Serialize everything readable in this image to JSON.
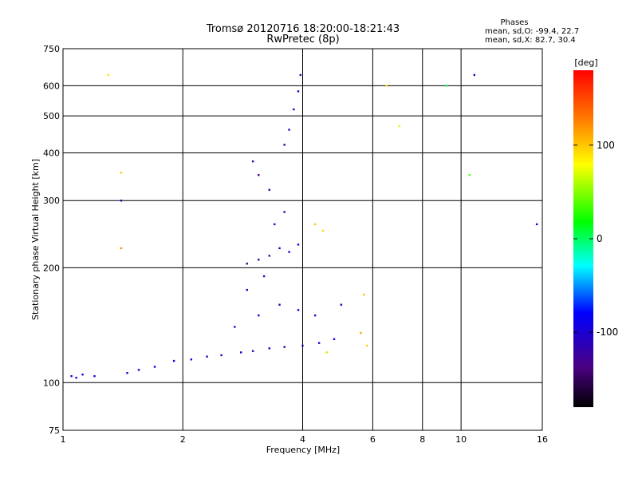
{
  "header": {
    "title_line1": "Tromsø 20120716 18:20:00-18:21:43",
    "title_line2": "RwPretec (8p)"
  },
  "stats": {
    "heading": "Phases",
    "o_mode": "mean, sd,O: -99.4, 22.7",
    "x_mode": "mean, sd,X:  82.7, 30.4"
  },
  "colorbar": {
    "label": "[deg]",
    "range": [
      -180,
      180
    ],
    "ticks": [
      "100",
      "0",
      "-100"
    ],
    "tick_values": [
      100,
      0,
      -100
    ]
  },
  "chart_data": {
    "type": "scatter",
    "xlabel": "Frequency [MHz]",
    "ylabel": "Stationary phase Virtual Height [km]",
    "xscale": "log",
    "yscale": "log",
    "xlim": [
      1,
      16
    ],
    "ylim": [
      75,
      750
    ],
    "xtick_labels": [
      "1",
      "2",
      "4",
      "6",
      "8",
      "10",
      "16"
    ],
    "xtick_values": [
      1,
      2,
      4,
      6,
      8,
      10,
      16
    ],
    "ytick_labels": [
      "75",
      "100",
      "200",
      "300",
      "400",
      "500",
      "600",
      "750"
    ],
    "ytick_values": [
      75,
      100,
      200,
      300,
      400,
      500,
      600,
      750
    ],
    "grid": true,
    "points": [
      {
        "x": 1.05,
        "y": 104,
        "phase": -95
      },
      {
        "x": 1.08,
        "y": 103,
        "phase": -100
      },
      {
        "x": 1.12,
        "y": 105,
        "phase": -98
      },
      {
        "x": 1.2,
        "y": 104,
        "phase": -92
      },
      {
        "x": 1.45,
        "y": 106,
        "phase": -105
      },
      {
        "x": 1.55,
        "y": 108,
        "phase": -95
      },
      {
        "x": 1.7,
        "y": 110,
        "phase": -90
      },
      {
        "x": 1.9,
        "y": 114,
        "phase": -100
      },
      {
        "x": 2.1,
        "y": 115,
        "phase": -95
      },
      {
        "x": 2.3,
        "y": 117,
        "phase": -110
      },
      {
        "x": 2.5,
        "y": 118,
        "phase": -100
      },
      {
        "x": 2.8,
        "y": 120,
        "phase": -105
      },
      {
        "x": 3.0,
        "y": 121,
        "phase": -120
      },
      {
        "x": 3.3,
        "y": 123,
        "phase": -100
      },
      {
        "x": 3.6,
        "y": 124,
        "phase": -95
      },
      {
        "x": 4.0,
        "y": 125,
        "phase": -110
      },
      {
        "x": 4.4,
        "y": 127,
        "phase": -100
      },
      {
        "x": 4.8,
        "y": 130,
        "phase": -90
      },
      {
        "x": 2.7,
        "y": 140,
        "phase": -100
      },
      {
        "x": 3.1,
        "y": 150,
        "phase": -95
      },
      {
        "x": 3.5,
        "y": 160,
        "phase": -110
      },
      {
        "x": 3.9,
        "y": 155,
        "phase": -90
      },
      {
        "x": 4.3,
        "y": 150,
        "phase": -100
      },
      {
        "x": 5.0,
        "y": 160,
        "phase": -95
      },
      {
        "x": 2.9,
        "y": 175,
        "phase": -100
      },
      {
        "x": 3.2,
        "y": 190,
        "phase": -120
      },
      {
        "x": 2.9,
        "y": 205,
        "phase": -125
      },
      {
        "x": 3.1,
        "y": 210,
        "phase": -120
      },
      {
        "x": 3.3,
        "y": 215,
        "phase": -130
      },
      {
        "x": 3.5,
        "y": 225,
        "phase": -110
      },
      {
        "x": 3.7,
        "y": 220,
        "phase": -100
      },
      {
        "x": 3.9,
        "y": 230,
        "phase": -95
      },
      {
        "x": 3.4,
        "y": 260,
        "phase": -110
      },
      {
        "x": 3.6,
        "y": 280,
        "phase": -100
      },
      {
        "x": 3.3,
        "y": 320,
        "phase": -120
      },
      {
        "x": 3.1,
        "y": 350,
        "phase": -130
      },
      {
        "x": 3.0,
        "y": 380,
        "phase": -120
      },
      {
        "x": 3.6,
        "y": 420,
        "phase": -100
      },
      {
        "x": 3.7,
        "y": 460,
        "phase": -110
      },
      {
        "x": 3.8,
        "y": 520,
        "phase": -100
      },
      {
        "x": 3.9,
        "y": 580,
        "phase": -110
      },
      {
        "x": 3.95,
        "y": 640,
        "phase": -120
      },
      {
        "x": 4.3,
        "y": 260,
        "phase": 100
      },
      {
        "x": 4.5,
        "y": 250,
        "phase": 95
      },
      {
        "x": 5.7,
        "y": 170,
        "phase": 100
      },
      {
        "x": 5.8,
        "y": 125,
        "phase": 95
      },
      {
        "x": 5.6,
        "y": 135,
        "phase": 110
      },
      {
        "x": 4.6,
        "y": 120,
        "phase": 60
      },
      {
        "x": 1.3,
        "y": 640,
        "phase": 90
      },
      {
        "x": 1.4,
        "y": 300,
        "phase": -110
      },
      {
        "x": 1.4,
        "y": 225,
        "phase": 120
      },
      {
        "x": 1.4,
        "y": 355,
        "phase": 100
      },
      {
        "x": 6.5,
        "y": 600,
        "phase": 90
      },
      {
        "x": 7.0,
        "y": 470,
        "phase": 70
      },
      {
        "x": 9.2,
        "y": 600,
        "phase": 0
      },
      {
        "x": 10.8,
        "y": 640,
        "phase": -100
      },
      {
        "x": 10.5,
        "y": 350,
        "phase": 40
      },
      {
        "x": 15.5,
        "y": 260,
        "phase": -90
      }
    ]
  }
}
